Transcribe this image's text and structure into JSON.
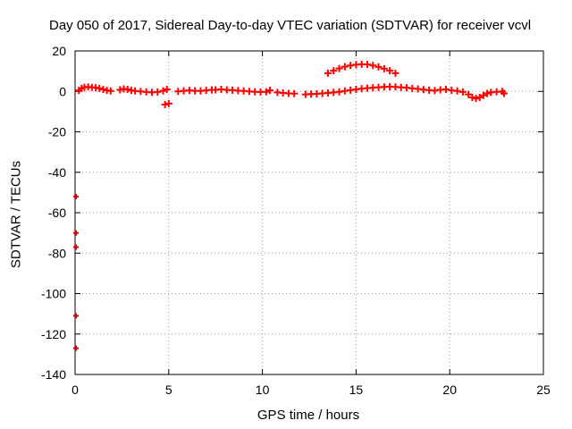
{
  "chart_data": {
    "type": "scatter",
    "title": "Day 050 of 2017, Sidereal Day-to-day VTEC variation (SDTVAR) for receiver vcvl",
    "xlabel": "GPS time / hours",
    "ylabel": "SDTVAR / TECUs",
    "xlim": [
      0,
      25
    ],
    "ylim": [
      -140,
      20
    ],
    "xticks": [
      0,
      5,
      10,
      15,
      20,
      25
    ],
    "yticks": [
      20,
      0,
      -20,
      -40,
      -60,
      -80,
      -100,
      -120,
      -140
    ],
    "grid": true,
    "legend": "none",
    "marker_color": "#ff0000",
    "outlier_color": "#cc0000",
    "series": [
      {
        "values": [
          [
            0.2,
            0.5
          ],
          [
            0.35,
            1.5
          ],
          [
            0.5,
            2.0
          ],
          [
            0.7,
            2.2
          ],
          [
            0.9,
            2.0
          ],
          [
            1.1,
            1.8
          ],
          [
            1.3,
            1.5
          ],
          [
            1.5,
            1.0
          ],
          [
            1.7,
            0.5
          ],
          [
            1.9,
            0.2
          ],
          [
            2.4,
            0.8
          ],
          [
            2.6,
            1.2
          ],
          [
            2.8,
            1.0
          ],
          [
            3.0,
            0.5
          ],
          [
            3.2,
            0.2
          ],
          [
            3.5,
            0.0
          ],
          [
            3.8,
            -0.3
          ],
          [
            4.1,
            -0.5
          ],
          [
            4.4,
            -0.3
          ],
          [
            4.7,
            0.3
          ],
          [
            4.9,
            1.0
          ],
          [
            4.8,
            -6.5
          ],
          [
            5.0,
            -6.0
          ],
          [
            5.5,
            0.0
          ],
          [
            5.8,
            0.3
          ],
          [
            6.1,
            0.5
          ],
          [
            6.4,
            0.3
          ],
          [
            6.7,
            0.2
          ],
          [
            7.0,
            0.5
          ],
          [
            7.3,
            0.7
          ],
          [
            7.5,
            0.8
          ],
          [
            7.8,
            1.0
          ],
          [
            8.1,
            0.8
          ],
          [
            8.4,
            0.6
          ],
          [
            8.7,
            0.4
          ],
          [
            9.0,
            0.2
          ],
          [
            9.3,
            0.0
          ],
          [
            9.6,
            -0.2
          ],
          [
            9.9,
            -0.3
          ],
          [
            10.2,
            -0.2
          ],
          [
            10.4,
            0.5
          ],
          [
            10.8,
            -0.5
          ],
          [
            11.1,
            -0.8
          ],
          [
            11.4,
            -1.0
          ],
          [
            11.7,
            -1.1
          ],
          [
            12.3,
            -1.5
          ],
          [
            12.6,
            -1.3
          ],
          [
            12.9,
            -1.2
          ],
          [
            13.2,
            -1.0
          ],
          [
            13.5,
            -0.8
          ],
          [
            13.8,
            -0.5
          ],
          [
            14.1,
            -0.2
          ],
          [
            14.4,
            0.2
          ],
          [
            14.7,
            0.6
          ],
          [
            15.0,
            1.0
          ],
          [
            15.3,
            1.3
          ],
          [
            15.6,
            1.6
          ],
          [
            15.9,
            1.8
          ],
          [
            16.2,
            2.0
          ],
          [
            16.5,
            2.2
          ],
          [
            16.8,
            2.3
          ],
          [
            17.1,
            2.2
          ],
          [
            17.4,
            2.0
          ],
          [
            17.7,
            1.8
          ],
          [
            18.0,
            1.5
          ],
          [
            18.3,
            1.2
          ],
          [
            18.6,
            0.9
          ],
          [
            18.9,
            0.6
          ],
          [
            19.2,
            0.4
          ],
          [
            19.5,
            0.8
          ],
          [
            19.8,
            1.0
          ],
          [
            20.1,
            0.5
          ],
          [
            20.4,
            0.2
          ],
          [
            20.7,
            -0.3
          ],
          [
            21.0,
            -1.5
          ],
          [
            21.2,
            -3.0
          ],
          [
            21.4,
            -3.5
          ],
          [
            21.6,
            -3.0
          ],
          [
            21.8,
            -2.0
          ],
          [
            22.0,
            -1.0
          ],
          [
            22.2,
            -0.5
          ],
          [
            22.5,
            -0.2
          ],
          [
            22.8,
            0.0
          ],
          [
            22.9,
            -1.0
          ],
          [
            13.5,
            9.0
          ],
          [
            13.8,
            10.2
          ],
          [
            14.1,
            11.3
          ],
          [
            14.4,
            12.2
          ],
          [
            14.7,
            12.8
          ],
          [
            15.0,
            13.2
          ],
          [
            15.3,
            13.4
          ],
          [
            15.6,
            13.3
          ],
          [
            15.9,
            12.8
          ],
          [
            16.2,
            12.1
          ],
          [
            16.5,
            11.2
          ],
          [
            16.8,
            10.2
          ],
          [
            17.1,
            9.0
          ]
        ]
      },
      {
        "values": [
          [
            0.05,
            -52
          ],
          [
            0.05,
            -70
          ],
          [
            0.05,
            -77
          ],
          [
            0.05,
            -111
          ],
          [
            0.05,
            -127
          ]
        ]
      }
    ]
  }
}
